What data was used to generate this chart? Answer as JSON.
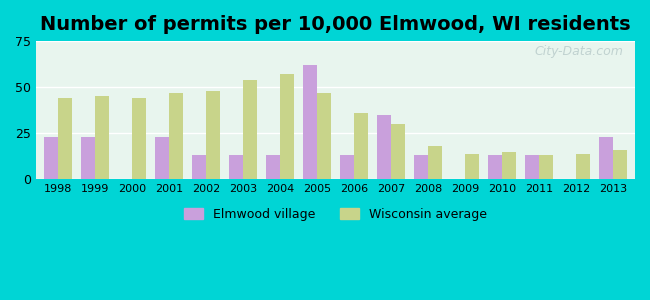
{
  "title": "Number of permits per 10,000 Elmwood, WI residents",
  "years": [
    1998,
    1999,
    2000,
    2001,
    2002,
    2003,
    2004,
    2005,
    2006,
    2007,
    2008,
    2009,
    2010,
    2011,
    2012,
    2013
  ],
  "elmwood": [
    23,
    23,
    0,
    23,
    13,
    13,
    13,
    62,
    13,
    35,
    13,
    0,
    13,
    13,
    0,
    23
  ],
  "wisconsin": [
    44,
    45,
    44,
    47,
    48,
    54,
    57,
    47,
    36,
    30,
    18,
    14,
    15,
    13,
    14,
    16
  ],
  "bar_color_elmwood": "#c9a0dc",
  "bar_color_wisconsin": "#c8d48a",
  "background_outer": "#00d5d5",
  "background_inner_top": "#e8f5f0",
  "background_inner_bottom": "#d0f0e8",
  "ylim": [
    0,
    75
  ],
  "yticks": [
    0,
    25,
    50,
    75
  ],
  "legend_elmwood": "Elmwood village",
  "legend_wisconsin": "Wisconsin average",
  "watermark": "City-Data.com",
  "title_fontsize": 14
}
